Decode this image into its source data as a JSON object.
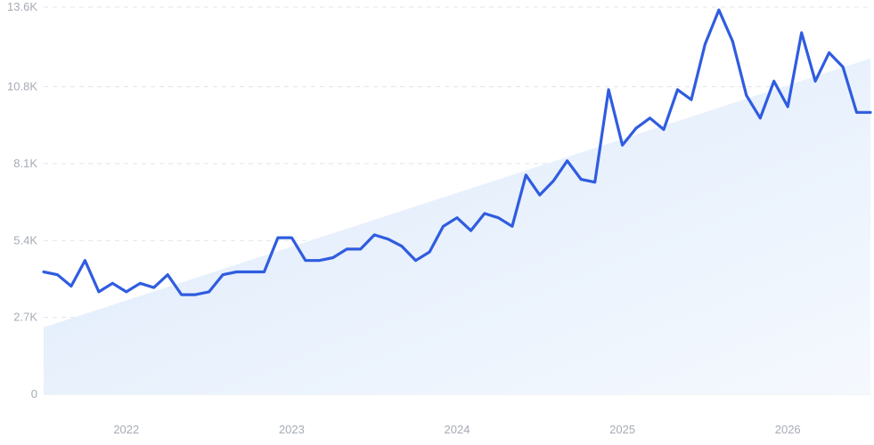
{
  "chart_data": {
    "type": "line",
    "title": "",
    "xlabel": "",
    "ylabel": "",
    "grid": "horizontal dashed",
    "legend": "none",
    "ylim": [
      0,
      13600
    ],
    "xlim": [
      "2021-07",
      "2026-07"
    ],
    "y_ticks": [
      0,
      2700,
      5400,
      8100,
      10800,
      13600
    ],
    "y_tick_labels": [
      "0",
      "2.7K",
      "5.4K",
      "8.1K",
      "10.8K",
      "13.6K"
    ],
    "x_ticks": [
      "2022-01",
      "2023-01",
      "2024-01",
      "2025-01",
      "2026-01"
    ],
    "x_tick_labels": [
      "2022",
      "2023",
      "2024",
      "2025",
      "2026"
    ],
    "colors": {
      "line": "#2f5ce0",
      "trend_fill_top": "#dce9fb",
      "trend_fill_bottom": "#f5f9fe"
    },
    "trend": {
      "x": [
        "2021-07",
        "2026-07"
      ],
      "y": [
        2350,
        11800
      ]
    },
    "series": [
      {
        "x": [
          "2021-07",
          "2021-08",
          "2021-09",
          "2021-10",
          "2021-11",
          "2021-12",
          "2022-01",
          "2022-02",
          "2022-03",
          "2022-04",
          "2022-05",
          "2022-06",
          "2022-07",
          "2022-08",
          "2022-09",
          "2022-10",
          "2022-11",
          "2022-12",
          "2023-01",
          "2023-02",
          "2023-03",
          "2023-04",
          "2023-05",
          "2023-06",
          "2023-07",
          "2023-08",
          "2023-09",
          "2023-10",
          "2023-11",
          "2023-12",
          "2024-01",
          "2024-02",
          "2024-03",
          "2024-04",
          "2024-05",
          "2024-06",
          "2024-07",
          "2024-08",
          "2024-09",
          "2024-10",
          "2024-11",
          "2024-12",
          "2025-01",
          "2025-02",
          "2025-03",
          "2025-04",
          "2025-05",
          "2025-06",
          "2025-07",
          "2025-08",
          "2025-09",
          "2025-10",
          "2025-11",
          "2025-12",
          "2026-01",
          "2026-02",
          "2026-03",
          "2026-04",
          "2026-05",
          "2026-06",
          "2026-07"
        ],
        "values": [
          4300,
          4200,
          3800,
          4700,
          3600,
          3900,
          3600,
          3900,
          3750,
          4200,
          3500,
          3500,
          3600,
          4200,
          4300,
          4300,
          4300,
          5500,
          5500,
          4700,
          4700,
          4800,
          5100,
          5100,
          5600,
          5450,
          5200,
          4700,
          5000,
          5900,
          6200,
          5750,
          6350,
          6200,
          5900,
          7700,
          7000,
          7500,
          8200,
          7550,
          7450,
          10700,
          8750,
          9350,
          9700,
          9300,
          10700,
          10350,
          12300,
          13500,
          12400,
          10500,
          9700,
          11000,
          10100,
          12700,
          11000,
          12000,
          11500,
          9900,
          9900
        ]
      }
    ]
  }
}
